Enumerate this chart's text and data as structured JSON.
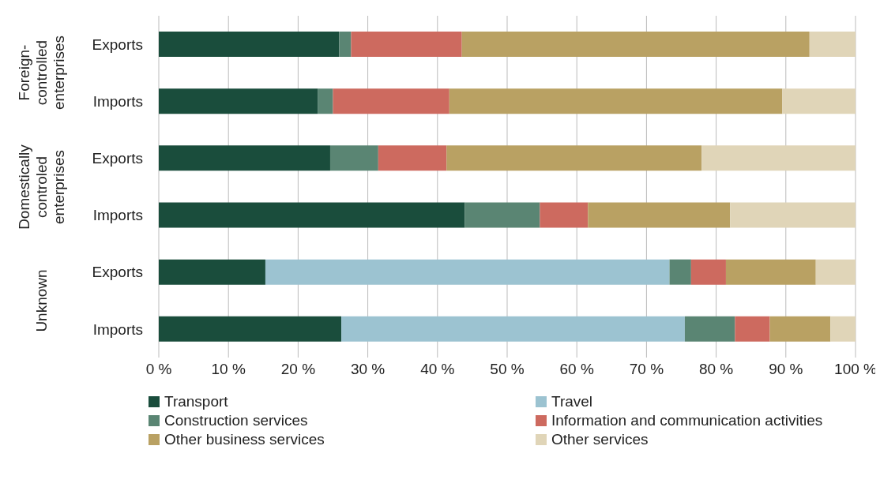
{
  "chart_data": {
    "type": "bar",
    "orientation": "horizontal",
    "stacked": true,
    "categories": [
      "Exports",
      "Imports",
      "Exports",
      "Imports",
      "Exports",
      "Imports"
    ],
    "series": [
      {
        "name": "Transport",
        "color": "#1a4d3c",
        "values": [
          25.9,
          22.8,
          24.6,
          43.9,
          15.3,
          26.2
        ]
      },
      {
        "name": "Travel",
        "color": "#9cc3d1",
        "values": [
          0,
          0,
          0,
          0,
          58.0,
          49.3
        ]
      },
      {
        "name": "Construction services",
        "color": "#5a8573",
        "values": [
          1.7,
          2.2,
          6.9,
          10.8,
          3.1,
          7.2
        ]
      },
      {
        "name": "Information and communication activities",
        "color": "#cd6a5f",
        "values": [
          15.9,
          16.7,
          9.8,
          6.9,
          5.0,
          5.0
        ]
      },
      {
        "name": "Other business services",
        "color": "#b9a163",
        "values": [
          49.9,
          47.8,
          36.6,
          20.4,
          12.9,
          8.7
        ]
      },
      {
        "name": "Other services",
        "color": "#e0d5b8",
        "values": [
          6.6,
          10.5,
          22.1,
          18.0,
          5.7,
          3.6
        ]
      }
    ],
    "xlim": [
      0,
      100
    ],
    "xticks": [
      {
        "value": 0,
        "label": "0 %"
      },
      {
        "value": 10,
        "label": "10 %"
      },
      {
        "value": 20,
        "label": "20 %"
      },
      {
        "value": 30,
        "label": "30 %"
      },
      {
        "value": 40,
        "label": "40 %"
      },
      {
        "value": 50,
        "label": "50 %"
      },
      {
        "value": 60,
        "label": "60 %"
      },
      {
        "value": 70,
        "label": "70 %"
      },
      {
        "value": 80,
        "label": "80 %"
      },
      {
        "value": 90,
        "label": "90 %"
      },
      {
        "value": 100,
        "label": "100 %"
      }
    ],
    "annotations": [
      "Foreign-controlled enterprises",
      "Domestically controled enterprises",
      "Unknown"
    ],
    "grid": "x",
    "legend": "bottom"
  }
}
